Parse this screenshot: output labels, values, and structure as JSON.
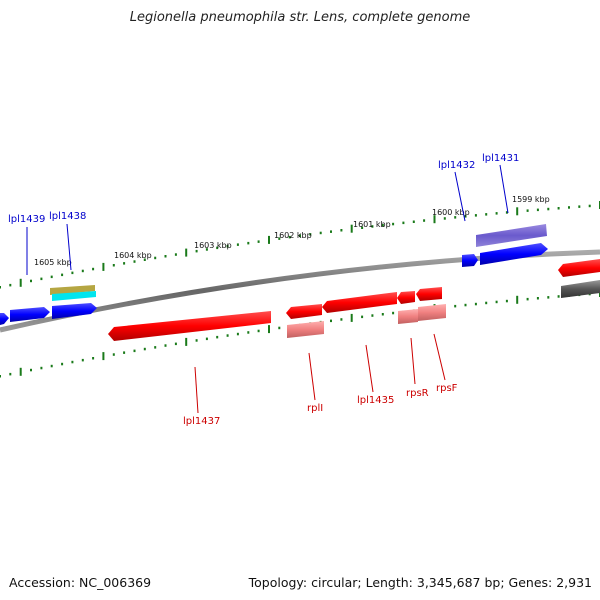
{
  "title": "Legionella pneumophila str. Lens, complete genome",
  "footer": {
    "accession": "Accession: NC_006369",
    "summary": "Topology: circular; Length: 3,345,687 bp; Genes: 2,931"
  },
  "ruler": {
    "labels": [
      "1599 kbp",
      "1600 kbp",
      "1601 kbp",
      "1602 kbp",
      "1603 kbp",
      "1604 kbp",
      "1605 kbp"
    ]
  },
  "colors": {
    "forward_gene": "#0000ff",
    "reverse_gene": "#ff0000",
    "reverse_pseudo": "#f08080",
    "other_gene": "#666666",
    "purple_gene": "#6a5acd",
    "olive_gene": "#b5a642",
    "cyan_gene": "#00e5ee",
    "ruler_tick": "#1a7a1a",
    "backbone": "#777777",
    "label_forward": "#0000cc",
    "label_reverse": "#cc0000"
  },
  "genes": [
    {
      "name": "lpl1439",
      "strand": "forward"
    },
    {
      "name": "lpl1438",
      "strand": "forward"
    },
    {
      "name": "lpl1432",
      "strand": "forward"
    },
    {
      "name": "lpl1431",
      "strand": "forward"
    },
    {
      "name": "lpl1437",
      "strand": "reverse"
    },
    {
      "name": "rplI",
      "strand": "reverse"
    },
    {
      "name": "lpl1435",
      "strand": "reverse"
    },
    {
      "name": "rpsR",
      "strand": "reverse"
    },
    {
      "name": "rpsF",
      "strand": "reverse"
    }
  ]
}
